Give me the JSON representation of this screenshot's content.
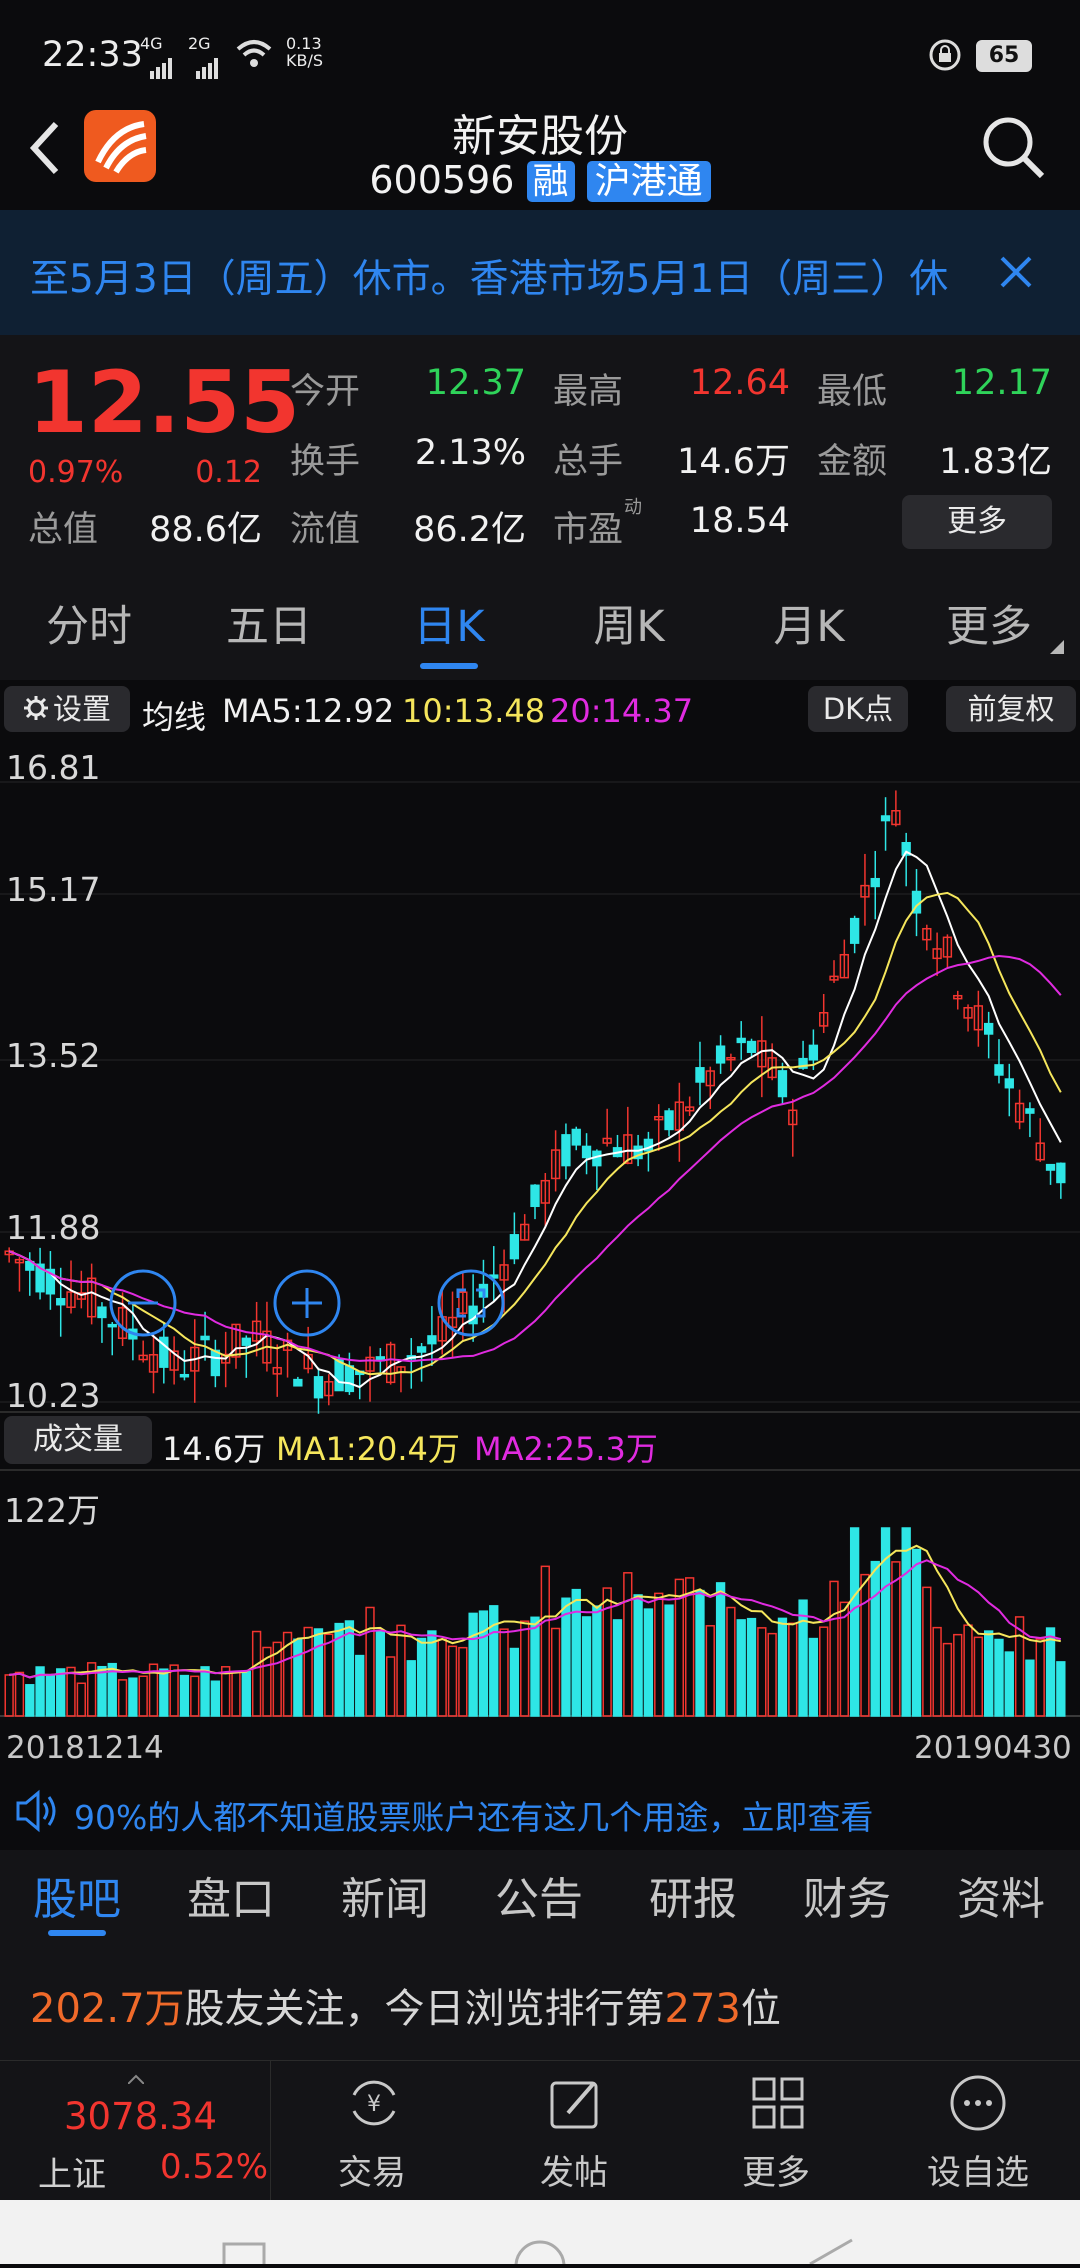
{
  "status": {
    "time": "22:33",
    "net1": "4G",
    "net2": "2G",
    "speed_top": "0.13",
    "speed_unit": "KB/S",
    "battery": "65"
  },
  "header": {
    "title": "新安股份",
    "code": "600596",
    "badge1": "融",
    "badge2": "沪港通"
  },
  "banner": {
    "text": "至5月3日（周五）休市。香港市场5月1日（周三）休"
  },
  "quote": {
    "price": "12.55",
    "pct": "0.97%",
    "chg": "0.12",
    "open_label": "今开",
    "open": "12.37",
    "high_label": "最高",
    "high": "12.64",
    "low_label": "最低",
    "low": "12.17",
    "turnover_label": "换手",
    "turnover": "2.13%",
    "vol_label": "总手",
    "vol": "14.6万",
    "amount_label": "金额",
    "amount": "1.83亿",
    "mcap_label": "总值",
    "mcap": "88.6亿",
    "float_label": "流值",
    "float": "86.2亿",
    "pe_label": "市盈",
    "pe_sup": "动",
    "pe": "18.54",
    "more": "更多"
  },
  "tabs": [
    "分时",
    "五日",
    "日K",
    "周K",
    "月K",
    "更多"
  ],
  "active_tab": "日K",
  "ma": {
    "settings": "设置",
    "label": "均线",
    "ma5": "MA5:12.92",
    "ma10": "10:13.48",
    "ma20": "20:14.37",
    "dk": "DK点",
    "adj": "前复权"
  },
  "price_axis": [
    "16.81",
    "15.17",
    "13.52",
    "11.88",
    "10.23"
  ],
  "volume": {
    "label": "成交量",
    "value": "14.6万",
    "ma1": "MA1:20.4万",
    "ma2": "MA2:25.3万",
    "max": "122万"
  },
  "dates": {
    "start": "20181214",
    "end": "20190430"
  },
  "ad": {
    "text": "90%的人都不知道股票账户还有这几个用途，立即查看"
  },
  "tabs2": [
    "股吧",
    "盘口",
    "新闻",
    "公告",
    "研报",
    "财务",
    "资料"
  ],
  "active_tab2": "股吧",
  "follow": {
    "count": "202.7万",
    "t1": "股友关注，今日浏览排行第",
    "rank": "273",
    "t2": "位"
  },
  "bottom": {
    "index_value": "3078.34",
    "index_name": "上证",
    "index_pct": "0.52%",
    "trade": "交易",
    "post": "发帖",
    "more": "更多",
    "watch": "设自选"
  },
  "colors": {
    "up": "#f2352f",
    "down": "#2ee6e6",
    "ma5": "#ffffff",
    "ma10": "#f5e65c",
    "ma20": "#e02be0",
    "accent": "#2f86f0"
  }
}
